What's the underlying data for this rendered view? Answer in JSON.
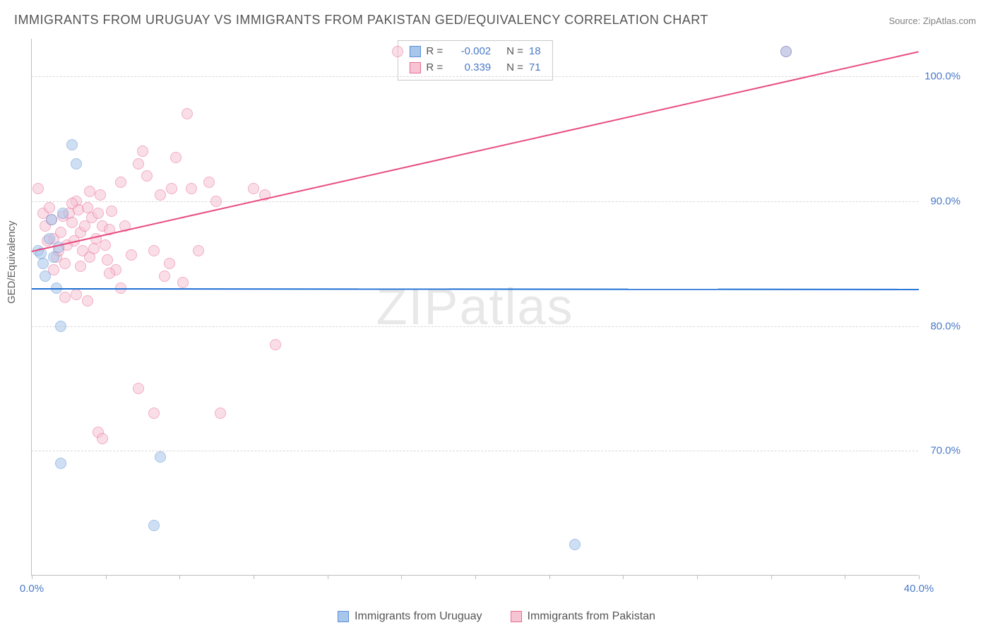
{
  "title": "IMMIGRANTS FROM URUGUAY VS IMMIGRANTS FROM PAKISTAN GED/EQUIVALENCY CORRELATION CHART",
  "source": "Source: ZipAtlas.com",
  "ylabel": "GED/Equivalency",
  "watermark": "ZIPatlas",
  "chart": {
    "type": "scatter",
    "xlim": [
      0,
      40
    ],
    "ylim": [
      60,
      103
    ],
    "xticks": [
      0,
      10,
      20,
      30,
      40
    ],
    "xtick_labels": [
      "0.0%",
      "",
      "",
      "",
      "40.0%"
    ],
    "xtick_minor": [
      3.33,
      6.67,
      13.33,
      16.67,
      23.33,
      26.67,
      33.33,
      36.67
    ],
    "yticks": [
      70,
      80,
      90,
      100
    ],
    "ytick_labels": [
      "70.0%",
      "80.0%",
      "90.0%",
      "100.0%"
    ],
    "grid_color": "#d8d8d8",
    "background_color": "#ffffff",
    "marker_radius": 8,
    "marker_opacity": 0.55,
    "series": [
      {
        "name": "Immigrants from Uruguay",
        "color_fill": "#a8c6eb",
        "color_stroke": "#5b8fd6",
        "R": "-0.002",
        "N": "18",
        "trend": {
          "color": "#1f6fd4",
          "y1": 83.0,
          "y2": 82.95
        },
        "points": [
          [
            0.3,
            86.0
          ],
          [
            0.5,
            85.0
          ],
          [
            0.8,
            87.0
          ],
          [
            0.9,
            88.5
          ],
          [
            1.0,
            85.5
          ],
          [
            1.1,
            83.0
          ],
          [
            1.2,
            86.3
          ],
          [
            1.3,
            80.0
          ],
          [
            1.4,
            89.0
          ],
          [
            1.8,
            94.5
          ],
          [
            2.0,
            93.0
          ],
          [
            1.3,
            69.0
          ],
          [
            5.8,
            69.5
          ],
          [
            5.5,
            64.0
          ],
          [
            24.5,
            62.5
          ],
          [
            0.6,
            84.0
          ],
          [
            0.4,
            85.8
          ],
          [
            34.0,
            102.0
          ]
        ]
      },
      {
        "name": "Immigrants from Pakistan",
        "color_fill": "#f7c4d4",
        "color_stroke": "#e86b94",
        "R": "0.339",
        "N": "71",
        "trend": {
          "color": "#e84c7f",
          "y1": 86.0,
          "y2": 102.0
        },
        "points": [
          [
            0.3,
            91.0
          ],
          [
            0.5,
            89.0
          ],
          [
            0.6,
            88.0
          ],
          [
            0.8,
            89.5
          ],
          [
            0.9,
            88.5
          ],
          [
            1.0,
            87.0
          ],
          [
            1.1,
            85.5
          ],
          [
            1.2,
            86.0
          ],
          [
            1.3,
            87.5
          ],
          [
            1.4,
            88.8
          ],
          [
            1.5,
            85.0
          ],
          [
            1.6,
            86.5
          ],
          [
            1.7,
            89.0
          ],
          [
            1.8,
            88.3
          ],
          [
            1.9,
            86.8
          ],
          [
            2.0,
            90.0
          ],
          [
            2.1,
            89.3
          ],
          [
            2.2,
            87.5
          ],
          [
            2.3,
            86.0
          ],
          [
            2.4,
            88.0
          ],
          [
            2.5,
            89.5
          ],
          [
            2.6,
            85.5
          ],
          [
            2.7,
            88.7
          ],
          [
            2.8,
            86.2
          ],
          [
            2.9,
            87.0
          ],
          [
            3.0,
            89.0
          ],
          [
            3.1,
            90.5
          ],
          [
            3.2,
            88.0
          ],
          [
            3.3,
            86.5
          ],
          [
            3.4,
            85.3
          ],
          [
            3.5,
            87.7
          ],
          [
            3.6,
            89.2
          ],
          [
            3.8,
            84.5
          ],
          [
            4.0,
            91.5
          ],
          [
            4.2,
            88.0
          ],
          [
            4.5,
            85.7
          ],
          [
            4.8,
            93.0
          ],
          [
            5.0,
            94.0
          ],
          [
            5.2,
            92.0
          ],
          [
            5.5,
            86.0
          ],
          [
            5.8,
            90.5
          ],
          [
            6.0,
            84.0
          ],
          [
            6.2,
            85.0
          ],
          [
            6.3,
            91.0
          ],
          [
            6.5,
            93.5
          ],
          [
            6.8,
            83.5
          ],
          [
            7.0,
            97.0
          ],
          [
            7.2,
            91.0
          ],
          [
            7.5,
            86.0
          ],
          [
            8.0,
            91.5
          ],
          [
            8.3,
            90.0
          ],
          [
            10.0,
            91.0
          ],
          [
            10.5,
            90.5
          ],
          [
            11.0,
            78.5
          ],
          [
            2.0,
            82.5
          ],
          [
            2.5,
            82.0
          ],
          [
            3.0,
            71.5
          ],
          [
            3.2,
            71.0
          ],
          [
            4.8,
            75.0
          ],
          [
            5.5,
            73.0
          ],
          [
            1.5,
            82.3
          ],
          [
            1.0,
            84.5
          ],
          [
            0.7,
            86.8
          ],
          [
            2.2,
            84.8
          ],
          [
            3.5,
            84.2
          ],
          [
            4.0,
            83.0
          ],
          [
            1.8,
            89.8
          ],
          [
            2.6,
            90.8
          ],
          [
            16.5,
            102.0
          ],
          [
            8.5,
            73.0
          ],
          [
            34.0,
            102.0
          ]
        ]
      }
    ]
  },
  "legend": {
    "items": [
      {
        "label": "Immigrants from Uruguay",
        "fill": "#a8c6eb",
        "stroke": "#5b8fd6"
      },
      {
        "label": "Immigrants from Pakistan",
        "fill": "#f7c4d4",
        "stroke": "#e86b94"
      }
    ]
  }
}
